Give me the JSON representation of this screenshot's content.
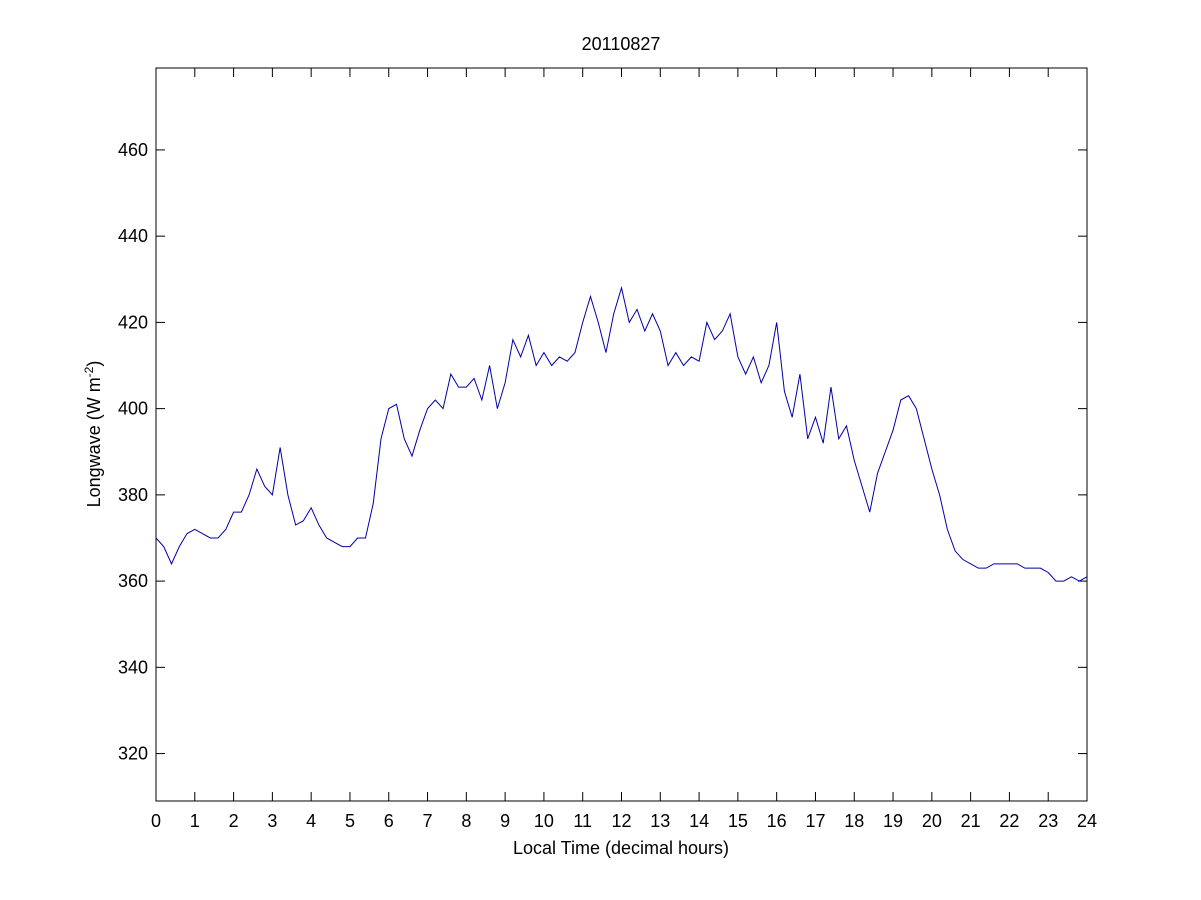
{
  "chart_data": {
    "type": "line",
    "title": "20110827",
    "xlabel": "Local Time (decimal hours)",
    "ylabel": {
      "text": "Longwave (W m",
      "superscript": "-2",
      "suffix": ")"
    },
    "x": [
      0,
      0.2,
      0.4,
      0.6,
      0.8,
      1,
      1.2,
      1.4,
      1.6,
      1.8,
      2,
      2.2,
      2.4,
      2.6,
      2.8,
      3,
      3.2,
      3.4,
      3.6,
      3.8,
      4,
      4.2,
      4.4,
      4.6,
      4.8,
      5,
      5.2,
      5.4,
      5.6,
      5.8,
      6,
      6.2,
      6.4,
      6.6,
      6.8,
      7,
      7.2,
      7.4,
      7.6,
      7.8,
      8,
      8.2,
      8.4,
      8.6,
      8.8,
      9,
      9.2,
      9.4,
      9.6,
      9.8,
      10,
      10.2,
      10.4,
      10.6,
      10.8,
      11,
      11.2,
      11.4,
      11.6,
      11.8,
      12,
      12.2,
      12.4,
      12.6,
      12.8,
      13,
      13.2,
      13.4,
      13.6,
      13.8,
      14,
      14.2,
      14.4,
      14.6,
      14.8,
      15,
      15.2,
      15.4,
      15.6,
      15.8,
      16,
      16.2,
      16.4,
      16.6,
      16.8,
      17,
      17.2,
      17.4,
      17.6,
      17.8,
      18,
      18.2,
      18.4,
      18.6,
      18.8,
      19,
      19.2,
      19.4,
      19.6,
      19.8,
      20,
      20.2,
      20.4,
      20.6,
      20.8,
      21,
      21.2,
      21.4,
      21.6,
      21.8,
      22,
      22.2,
      22.4,
      22.6,
      22.8,
      23,
      23.2,
      23.4,
      23.6,
      23.8,
      24
    ],
    "series": [
      {
        "name": "Longwave",
        "color": "#0000a8",
        "values": [
          370,
          368,
          364,
          368,
          371,
          372,
          371,
          370,
          370,
          372,
          376,
          376,
          380,
          386,
          382,
          380,
          391,
          380,
          373,
          374,
          377,
          373,
          370,
          369,
          368,
          368,
          370,
          370,
          378,
          393,
          400,
          401,
          393,
          389,
          395,
          400,
          402,
          400,
          408,
          405,
          405,
          407,
          402,
          410,
          400,
          406,
          416,
          412,
          417,
          410,
          413,
          410,
          412,
          411,
          413,
          420,
          426,
          420,
          413,
          422,
          428,
          420,
          423,
          418,
          422,
          418,
          410,
          413,
          410,
          412,
          411,
          420,
          416,
          418,
          422,
          412,
          408,
          412,
          406,
          410,
          420,
          404,
          398,
          408,
          393,
          398,
          392,
          405,
          393,
          396,
          388,
          382,
          376,
          385,
          390,
          395,
          402,
          403,
          400,
          393,
          386,
          380,
          372,
          367,
          365,
          364,
          363,
          363,
          364,
          364,
          364,
          364,
          363,
          363,
          363,
          362,
          360,
          360,
          361,
          360,
          361
        ]
      }
    ],
    "xlim": [
      0,
      24
    ],
    "ylim": [
      309,
      479
    ],
    "xticks": [
      0,
      1,
      2,
      3,
      4,
      5,
      6,
      7,
      8,
      9,
      10,
      11,
      12,
      13,
      14,
      15,
      16,
      17,
      18,
      19,
      20,
      21,
      22,
      23,
      24
    ],
    "yticks": [
      320,
      340,
      360,
      380,
      400,
      420,
      440,
      460
    ],
    "grid": false
  }
}
